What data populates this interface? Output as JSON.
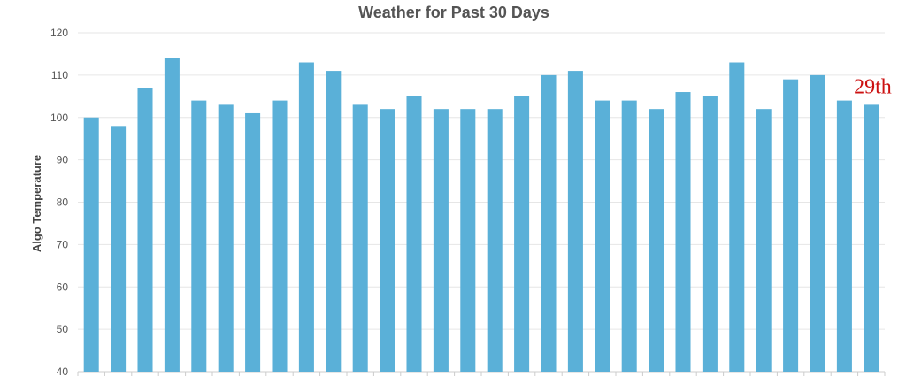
{
  "chart_data": {
    "type": "bar",
    "title": "Weather for Past 30 Days",
    "ylabel": "Algo Temperature",
    "xlabel": "",
    "ylim": [
      40,
      120
    ],
    "yticks": [
      40,
      50,
      60,
      70,
      80,
      90,
      100,
      110,
      120
    ],
    "grid": true,
    "values": [
      100,
      98,
      107,
      114,
      104,
      103,
      101,
      104,
      113,
      111,
      103,
      102,
      105,
      102,
      102,
      102,
      105,
      110,
      111,
      104,
      104,
      102,
      106,
      105,
      113,
      102,
      109,
      110,
      104,
      103
    ],
    "colors": {
      "bar": "#5ab0d8",
      "annotation": "#cc1111"
    },
    "annotations": [
      {
        "text": "29th",
        "bar_index": 28
      }
    ]
  }
}
